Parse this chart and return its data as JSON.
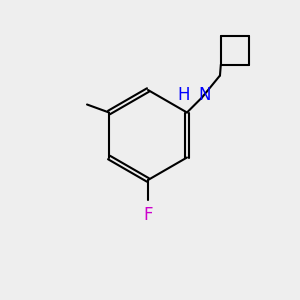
{
  "background_color": "#eeeeee",
  "bond_color": "#000000",
  "N_color": "#0000ff",
  "F_color": "#cc00cc",
  "label_N": "N",
  "label_H": "H",
  "label_F": "F",
  "label_Me": "",
  "figsize": [
    3.0,
    3.0
  ],
  "dpi": 100
}
